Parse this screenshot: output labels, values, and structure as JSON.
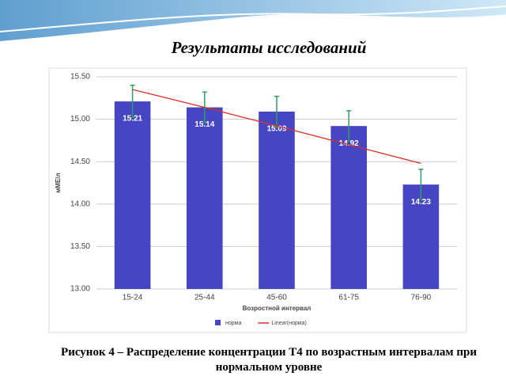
{
  "slide_title": "Результаты исследований",
  "caption": "Рисунок 4 – Распределение концентрации Т4 по возрастным интервалам при нормальном уровне",
  "chart_data": {
    "type": "bar",
    "categories": [
      "15-24",
      "25-44",
      "45-60",
      "61-75",
      "76-90"
    ],
    "xlabel": "Возростной интервал",
    "ylabel": "мМЕ/л",
    "ylim": [
      13,
      15.5
    ],
    "yticks": [
      {
        "value": 13,
        "label": "13.00"
      },
      {
        "value": 13.5,
        "label": "13.50"
      },
      {
        "value": 14,
        "label": "14.00"
      },
      {
        "value": 14.5,
        "label": "14.50"
      },
      {
        "value": 15,
        "label": "15.00"
      },
      {
        "value": 15.5,
        "label": "15.50"
      }
    ],
    "grid": true,
    "series": [
      {
        "name": "норма",
        "type": "bar",
        "color": "#4646c4",
        "values": [
          15.21,
          15.14,
          15.09,
          14.92,
          14.23
        ],
        "errors": [
          0.19,
          0.18,
          0.18,
          0.18,
          0.18
        ],
        "error_color": "#2f9e62"
      },
      {
        "name": "Linear(норма)",
        "type": "line",
        "color": "#d93025",
        "values": [
          15.35,
          15.14,
          14.92,
          14.7,
          14.48
        ]
      }
    ]
  }
}
